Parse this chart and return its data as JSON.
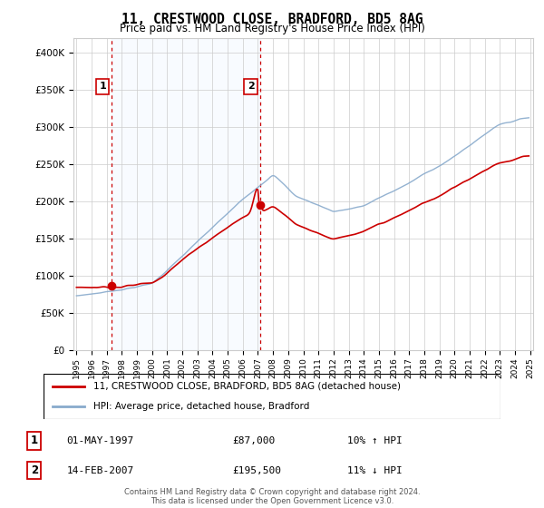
{
  "title": "11, CRESTWOOD CLOSE, BRADFORD, BD5 8AG",
  "subtitle": "Price paid vs. HM Land Registry's House Price Index (HPI)",
  "ylim": [
    0,
    420000
  ],
  "yticks": [
    0,
    50000,
    100000,
    150000,
    200000,
    250000,
    300000,
    350000,
    400000
  ],
  "sale1_price": 87000,
  "sale1_label": "1",
  "sale1_date_str": "01-MAY-1997",
  "sale1_hpi": "10% ↑ HPI",
  "sale1_year": 1997.333,
  "sale2_price": 195500,
  "sale2_label": "2",
  "sale2_date_str": "14-FEB-2007",
  "sale2_hpi": "11% ↓ HPI",
  "sale2_year": 2007.125,
  "red_line_color": "#cc0000",
  "blue_line_color": "#88aacc",
  "shade_color": "#ddeeff",
  "vline_color": "#cc0000",
  "grid_color": "#cccccc",
  "bg_color": "#ffffff",
  "legend1_text": "11, CRESTWOOD CLOSE, BRADFORD, BD5 8AG (detached house)",
  "legend2_text": "HPI: Average price, detached house, Bradford",
  "footer": "Contains HM Land Registry data © Crown copyright and database right 2024.\nThis data is licensed under the Open Government Licence v3.0.",
  "x_start_year": 1995,
  "x_end_year": 2025
}
